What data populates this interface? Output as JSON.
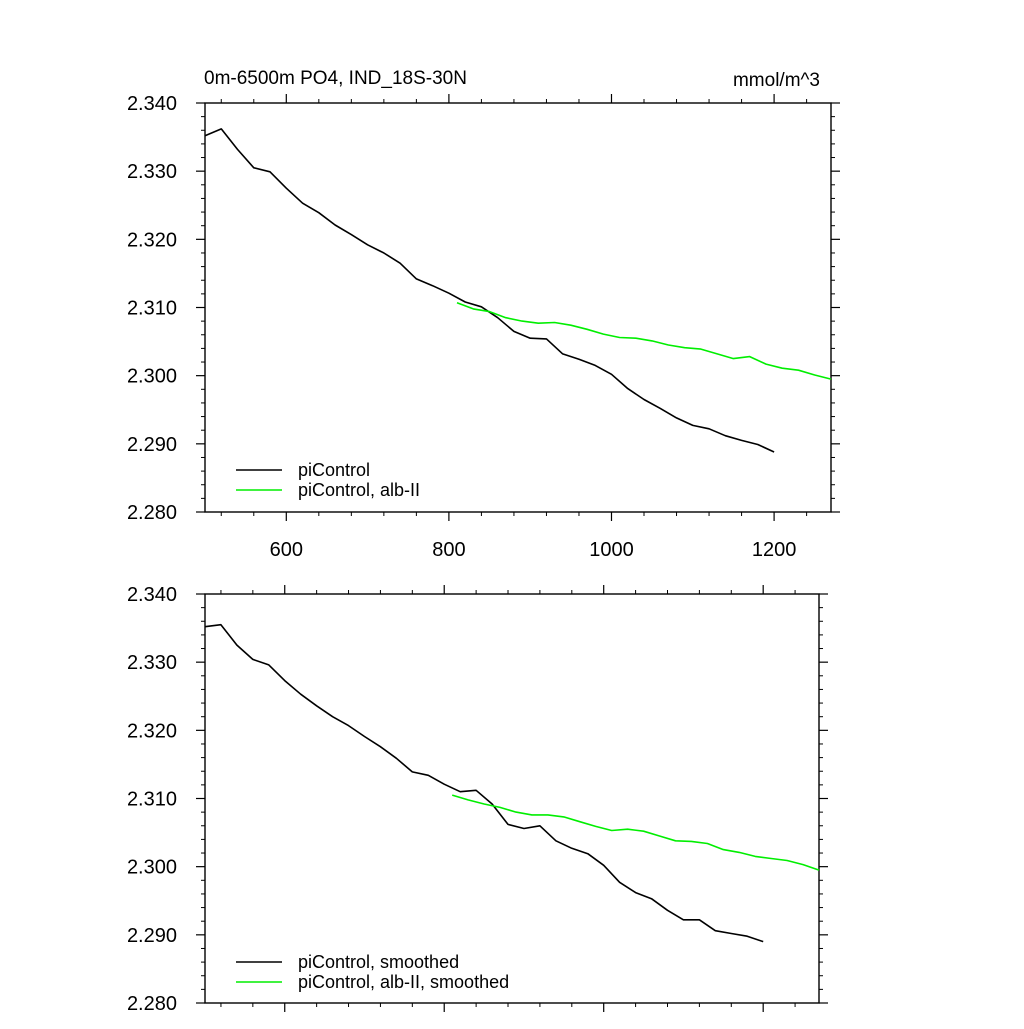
{
  "chart_data": [
    {
      "type": "line",
      "title": "0m-6500m PO4, IND_18S-30N",
      "units": "mmol/m^3",
      "xlabel": "",
      "ylabel": "",
      "xlim": [
        500,
        1270
      ],
      "ylim": [
        2.28,
        2.34
      ],
      "x_ticks": [
        600,
        800,
        1000,
        1200
      ],
      "x_tick_labels": [
        "600",
        "800",
        "1000",
        "1200"
      ],
      "y_ticks": [
        2.28,
        2.29,
        2.3,
        2.31,
        2.32,
        2.33,
        2.34
      ],
      "y_tick_labels": [
        "2.280",
        "2.290",
        "2.300",
        "2.310",
        "2.320",
        "2.330",
        "2.340"
      ],
      "legend_position": "bottom-left",
      "series": [
        {
          "name": "piControl",
          "color": "#000000",
          "x": [
            500,
            520,
            540,
            560,
            580,
            600,
            620,
            640,
            660,
            680,
            700,
            720,
            740,
            760,
            780,
            800,
            820,
            840,
            860,
            880,
            900,
            920,
            940,
            960,
            980,
            1000,
            1020,
            1040,
            1060,
            1080,
            1100,
            1120,
            1140,
            1160,
            1180,
            1200
          ],
          "values": [
            2.3352,
            2.3362,
            2.3332,
            2.3305,
            2.3299,
            2.3275,
            2.3253,
            2.3239,
            2.3221,
            2.3207,
            2.3192,
            2.318,
            2.3165,
            2.3142,
            2.3132,
            2.3121,
            2.3108,
            2.3101,
            2.3085,
            2.3065,
            2.3055,
            2.3054,
            2.3032,
            2.3024,
            2.3015,
            2.3002,
            2.2981,
            2.2965,
            2.2952,
            2.2938,
            2.2927,
            2.2922,
            2.2912,
            2.2905,
            2.2899,
            2.2888
          ]
        },
        {
          "name": "piControl, alb-II",
          "color": "#00ee00",
          "x": [
            810,
            830,
            850,
            870,
            890,
            910,
            930,
            950,
            970,
            990,
            1010,
            1030,
            1050,
            1070,
            1090,
            1110,
            1130,
            1150,
            1170,
            1190,
            1210,
            1230,
            1250,
            1270
          ],
          "values": [
            2.3107,
            2.3098,
            2.3094,
            2.3085,
            2.308,
            2.3077,
            2.3078,
            2.3074,
            2.3068,
            2.3061,
            2.3056,
            2.3055,
            2.3051,
            2.3045,
            2.3041,
            2.3039,
            2.3032,
            2.3025,
            2.3028,
            2.3017,
            2.3011,
            2.3008,
            2.3001,
            2.2995
          ]
        }
      ]
    },
    {
      "type": "line",
      "title": "",
      "xlabel": "",
      "ylabel": "",
      "xlim": [
        500,
        1270
      ],
      "ylim": [
        2.28,
        2.34
      ],
      "x_ticks": [
        600,
        800,
        1000,
        1200
      ],
      "y_ticks": [
        2.28,
        2.29,
        2.3,
        2.31,
        2.32,
        2.33,
        2.34
      ],
      "y_tick_labels": [
        "2.280",
        "2.290",
        "2.300",
        "2.310",
        "2.320",
        "2.330",
        "2.340"
      ],
      "legend_position": "bottom-left",
      "series": [
        {
          "name": "piControl, smoothed",
          "color": "#000000",
          "x": [
            500,
            520,
            540,
            560,
            580,
            600,
            620,
            640,
            660,
            680,
            700,
            720,
            740,
            760,
            780,
            800,
            820,
            840,
            860,
            880,
            900,
            920,
            940,
            960,
            980,
            1000,
            1020,
            1040,
            1060,
            1080,
            1100,
            1120,
            1140,
            1160,
            1180,
            1200
          ],
          "values": [
            2.3352,
            2.3355,
            2.3325,
            2.3304,
            2.3296,
            2.3273,
            2.3253,
            2.3236,
            2.322,
            2.3207,
            2.3191,
            2.3176,
            2.3159,
            2.3139,
            2.3134,
            2.3121,
            2.311,
            2.3112,
            2.3092,
            2.3062,
            2.3056,
            2.306,
            2.3038,
            2.3027,
            2.3019,
            2.3002,
            2.2977,
            2.2962,
            2.2953,
            2.2936,
            2.2922,
            2.2922,
            2.2906,
            2.2902,
            2.2898,
            2.289
          ]
        },
        {
          "name": "piControl, alb-II, smoothed",
          "color": "#00ee00",
          "x": [
            810,
            830,
            850,
            870,
            890,
            910,
            930,
            950,
            970,
            990,
            1010,
            1030,
            1050,
            1070,
            1090,
            1110,
            1130,
            1150,
            1170,
            1190,
            1210,
            1230,
            1250,
            1270
          ],
          "values": [
            2.3105,
            2.3098,
            2.3092,
            2.3087,
            2.308,
            2.3076,
            2.3076,
            2.3073,
            2.3066,
            2.3059,
            2.3053,
            2.3055,
            2.3052,
            2.3045,
            2.3038,
            2.3037,
            2.3034,
            2.3025,
            2.3021,
            2.3015,
            2.3012,
            2.3009,
            2.3003,
            2.2995
          ]
        }
      ]
    }
  ]
}
